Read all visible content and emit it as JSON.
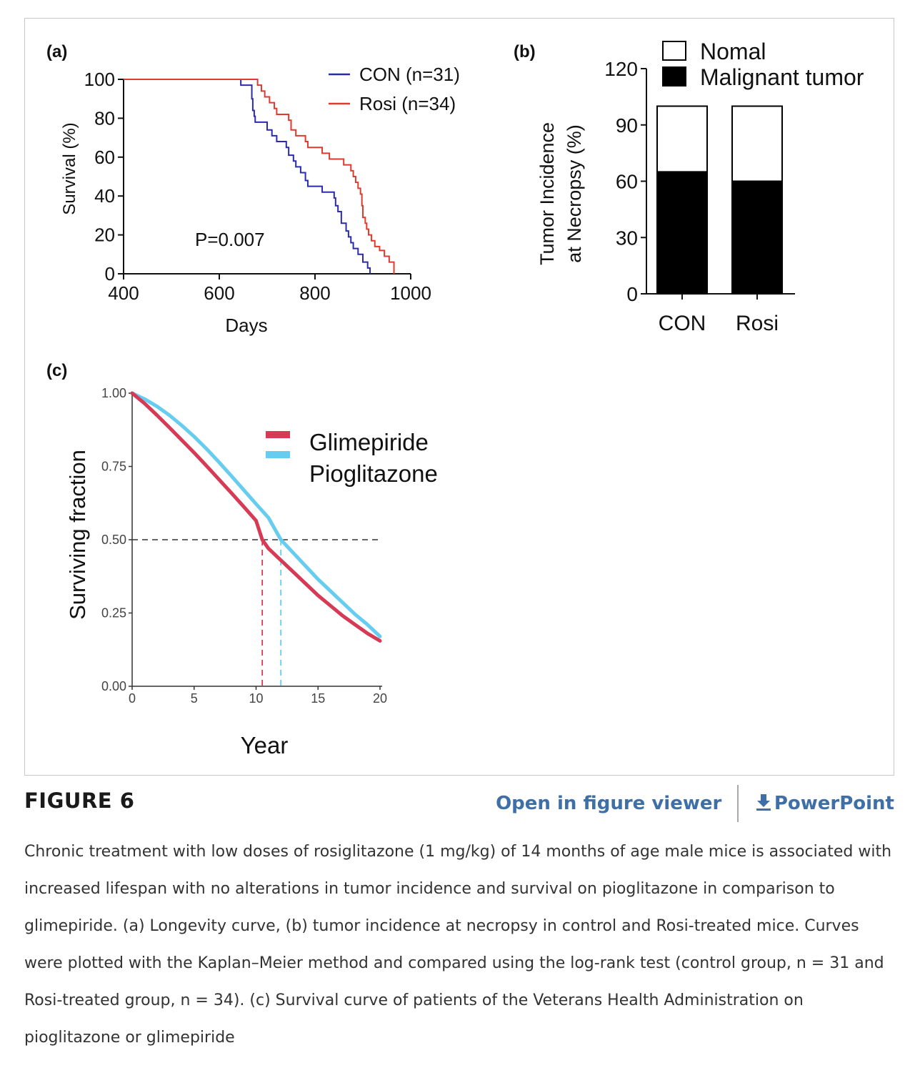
{
  "figure": {
    "label": "FIGURE 6",
    "open_viewer": "Open in figure viewer",
    "powerpoint": "PowerPoint",
    "caption": "Chronic treatment with low doses of rosiglitazone (1 mg/kg) of 14 months of age male mice is associated with increased lifespan with no alterations in tumor incidence and survival on pioglitazone in comparison to glimepiride. (a) Longevity curve, (b) tumor incidence at necropsy in control and Rosi-treated mice. Curves were plotted with the Kaplan–Meier method and compared using the log-rank test (control group, n = 31 and Rosi-treated group, n = 34). (c) Survival curve of patients of the Veterans Health Administration on pioglitazone or glimepiride",
    "link_color": "#3e6fa6"
  },
  "chart_data": [
    {
      "panel": "(a)",
      "type": "line",
      "step": true,
      "xlabel": "Days",
      "ylabel": "Survival (%)",
      "xlim": [
        400,
        1000
      ],
      "ylim": [
        0,
        100
      ],
      "xticks": [
        "400",
        "600",
        "800",
        "1000"
      ],
      "yticks": [
        "0",
        "20",
        "40",
        "60",
        "80",
        "100"
      ],
      "annotation": "P=0.007",
      "legend_position": "top-right",
      "series": [
        {
          "name": "CON (n=31)",
          "color": "#2b2bb0",
          "x": [
            400,
            645,
            668,
            670,
            673,
            675,
            680,
            700,
            710,
            720,
            740,
            745,
            755,
            760,
            762,
            770,
            775,
            780,
            785,
            790,
            815,
            835,
            840,
            843,
            848,
            855,
            865,
            870,
            875,
            880,
            890,
            900,
            910,
            915
          ],
          "y": [
            100,
            97,
            90,
            84,
            81,
            78,
            78,
            74,
            71,
            68,
            65,
            61,
            58,
            55,
            55,
            52,
            52,
            48,
            45,
            45,
            42,
            42,
            39,
            35,
            32,
            26,
            22,
            19,
            16,
            13,
            10,
            6,
            3,
            0
          ]
        },
        {
          "name": "Rosi (n=34)",
          "color": "#e03a2e",
          "x": [
            400,
            680,
            688,
            695,
            705,
            715,
            720,
            730,
            745,
            750,
            760,
            765,
            780,
            785,
            800,
            815,
            830,
            850,
            860,
            875,
            880,
            885,
            890,
            895,
            898,
            900,
            905,
            908,
            912,
            918,
            925,
            935,
            945,
            955,
            965
          ],
          "y": [
            100,
            97,
            94,
            91,
            88,
            85,
            82,
            82,
            79,
            74,
            71,
            71,
            68,
            65,
            65,
            62,
            59,
            59,
            56,
            53,
            50,
            47,
            44,
            41,
            35,
            29,
            26,
            23,
            20,
            17,
            14,
            12,
            9,
            6,
            0
          ]
        }
      ]
    },
    {
      "panel": "(b)",
      "type": "bar",
      "stacked": true,
      "ylabel_line1": "Tumor Incidence",
      "ylabel_line2": "at Necropsy (%)",
      "categories": [
        "CON",
        "Rosi"
      ],
      "ylim": [
        0,
        120
      ],
      "yticks": [
        "0",
        "30",
        "60",
        "90",
        "120"
      ],
      "legend_position": "top-right",
      "series": [
        {
          "name": "Malignant tumor",
          "color": "#000000",
          "values": [
            65,
            60
          ]
        },
        {
          "name": "Nomal",
          "color": "#ffffff",
          "values": [
            35,
            40
          ]
        }
      ]
    },
    {
      "panel": "(c)",
      "type": "line",
      "xlabel": "Year",
      "ylabel": "Surviving fraction",
      "xlim": [
        0,
        20
      ],
      "ylim": [
        0,
        1
      ],
      "xticks": [
        "0",
        "5",
        "10",
        "15",
        "20"
      ],
      "yticks": [
        "0.00",
        "0.25",
        "0.50",
        "0.75",
        "1.00"
      ],
      "legend_position": "top-center",
      "median_line": {
        "y": 0.5,
        "x_end": 20
      },
      "series": [
        {
          "name": "Glimepiride",
          "color": "#d63a55",
          "median_year": 10.5,
          "x": [
            0,
            1,
            2,
            3,
            4,
            5,
            6,
            7,
            8,
            9,
            10,
            10.5,
            11,
            12,
            13,
            14,
            15,
            16,
            17,
            18,
            19,
            20
          ],
          "y": [
            1.0,
            0.965,
            0.925,
            0.883,
            0.84,
            0.797,
            0.752,
            0.706,
            0.66,
            0.613,
            0.565,
            0.5,
            0.47,
            0.43,
            0.39,
            0.35,
            0.31,
            0.275,
            0.24,
            0.21,
            0.18,
            0.155
          ]
        },
        {
          "name": "Pioglitazone",
          "color": "#66cdf0",
          "median_year": 12,
          "x": [
            0,
            1,
            2,
            3,
            4,
            5,
            6,
            7,
            8,
            9,
            10,
            11,
            12,
            13,
            14,
            15,
            16,
            17,
            18,
            19,
            20
          ],
          "y": [
            1.0,
            0.98,
            0.955,
            0.925,
            0.89,
            0.852,
            0.81,
            0.765,
            0.718,
            0.67,
            0.622,
            0.575,
            0.5,
            0.455,
            0.41,
            0.365,
            0.325,
            0.285,
            0.245,
            0.21,
            0.17
          ]
        }
      ]
    }
  ]
}
